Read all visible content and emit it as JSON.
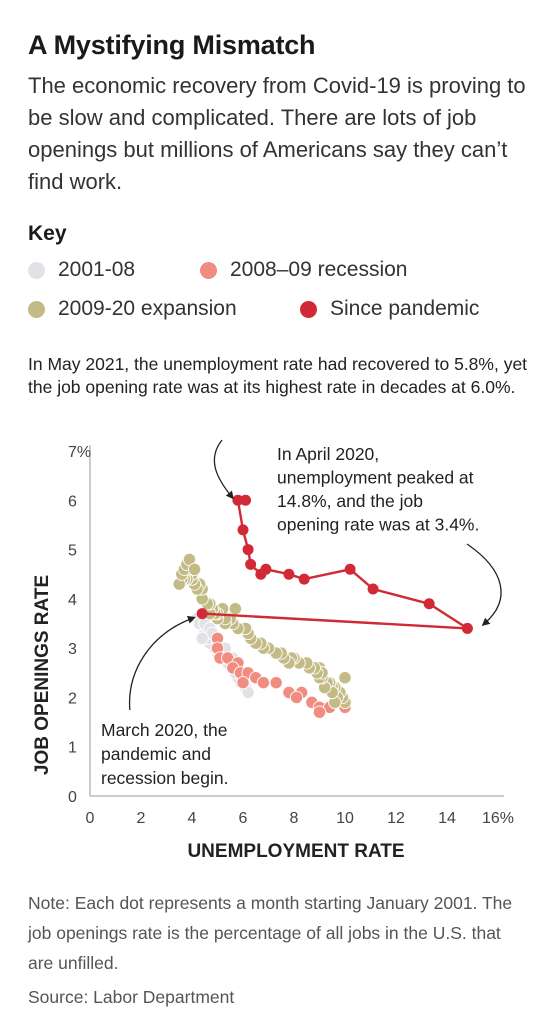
{
  "header": {
    "title": "A Mystifying Mismatch",
    "subtitle": "The economic recovery from Covid-19 is proving to be slow and complicated. There are lots of job openings but millions of Americans say they can’t find work."
  },
  "key": {
    "heading": "Key",
    "items": [
      {
        "label": "2001-08",
        "color": "#e2e2e6"
      },
      {
        "label": "2008–09 recession",
        "color": "#f08c80"
      },
      {
        "label": "2009-20 expansion",
        "color": "#c2bb85"
      },
      {
        "label": "Since pandemic",
        "color": "#d12a36"
      }
    ]
  },
  "caption": "In May 2021, the unemployment rate had recovered to 5.8%, yet the job opening rate was at its highest rate in decades at 6.0%.",
  "annotations": {
    "april_2020": [
      "In April 2020,",
      "unemployment peaked at",
      "14.8%, and the job",
      "opening rate was at 3.4%."
    ],
    "march_2020": [
      "March 2020, the",
      "pandemic and",
      "recession begin."
    ]
  },
  "note": "Note: Each dot represents a month starting January 2001. The job openings rate is the percentage of all jobs in the U.S. that are unfilled.",
  "source": "Source: Labor Department",
  "chart_data": {
    "type": "scatter",
    "xlabel": "UNEMPLOYMENT RATE",
    "ylabel": "JOB OPENINGS RATE",
    "xlim": [
      0,
      16
    ],
    "ylim": [
      0,
      7
    ],
    "x_ticks": [
      "0",
      "2",
      "4",
      "6",
      "8",
      "10",
      "12",
      "14",
      "16%"
    ],
    "y_ticks": [
      "0",
      "1",
      "2",
      "3",
      "4",
      "5",
      "6",
      "7%"
    ],
    "grid": false,
    "series": [
      {
        "name": "2001-08",
        "color": "#e2e2e6",
        "points": [
          [
            4.2,
            3.6
          ],
          [
            4.3,
            3.5
          ],
          [
            4.6,
            3.3
          ],
          [
            4.8,
            3.1
          ],
          [
            5.0,
            3.0
          ],
          [
            5.3,
            2.8
          ],
          [
            5.5,
            2.7
          ],
          [
            5.7,
            2.6
          ],
          [
            5.8,
            2.5
          ],
          [
            6.0,
            2.4
          ],
          [
            6.0,
            2.3
          ],
          [
            5.9,
            2.3
          ],
          [
            5.8,
            2.4
          ],
          [
            5.7,
            2.5
          ],
          [
            5.6,
            2.6
          ],
          [
            5.4,
            2.7
          ],
          [
            5.2,
            2.8
          ],
          [
            5.0,
            2.9
          ],
          [
            4.9,
            3.0
          ],
          [
            4.7,
            3.1
          ],
          [
            4.6,
            3.2
          ],
          [
            4.5,
            3.3
          ],
          [
            4.6,
            3.4
          ],
          [
            4.5,
            3.5
          ],
          [
            4.7,
            3.4
          ],
          [
            4.8,
            3.3
          ],
          [
            5.0,
            3.2
          ],
          [
            5.3,
            3.0
          ],
          [
            5.6,
            2.8
          ],
          [
            6.1,
            2.2
          ],
          [
            6.2,
            2.1
          ],
          [
            4.4,
            3.2
          ]
        ]
      },
      {
        "name": "2008–09 recession",
        "color": "#f08c80",
        "points": [
          [
            5.0,
            3.2
          ],
          [
            5.0,
            3.0
          ],
          [
            5.1,
            2.8
          ],
          [
            5.4,
            2.8
          ],
          [
            5.8,
            2.7
          ],
          [
            5.6,
            2.6
          ],
          [
            5.9,
            2.5
          ],
          [
            6.2,
            2.5
          ],
          [
            6.5,
            2.4
          ],
          [
            6.8,
            2.3
          ],
          [
            7.3,
            2.3
          ],
          [
            6.0,
            2.3
          ],
          [
            7.8,
            2.1
          ],
          [
            8.3,
            2.1
          ],
          [
            8.7,
            1.9
          ],
          [
            9.0,
            1.8
          ],
          [
            9.4,
            1.8
          ],
          [
            9.8,
            1.9
          ],
          [
            10.0,
            1.8
          ],
          [
            9.0,
            1.7
          ],
          [
            8.1,
            2.0
          ]
        ]
      },
      {
        "name": "2009-20 expansion",
        "color": "#c2bb85",
        "points": [
          [
            10.0,
            1.9
          ],
          [
            9.9,
            2.0
          ],
          [
            9.8,
            2.1
          ],
          [
            9.7,
            2.0
          ],
          [
            9.6,
            2.2
          ],
          [
            9.6,
            1.9
          ],
          [
            9.5,
            2.2
          ],
          [
            9.4,
            2.3
          ],
          [
            9.5,
            2.1
          ],
          [
            9.3,
            2.3
          ],
          [
            9.2,
            2.2
          ],
          [
            9.1,
            2.4
          ],
          [
            9.0,
            2.4
          ],
          [
            9.0,
            2.6
          ],
          [
            9.1,
            2.5
          ],
          [
            8.9,
            2.5
          ],
          [
            8.8,
            2.6
          ],
          [
            8.6,
            2.6
          ],
          [
            8.5,
            2.7
          ],
          [
            8.2,
            2.7
          ],
          [
            8.0,
            2.8
          ],
          [
            7.9,
            2.8
          ],
          [
            7.8,
            2.7
          ],
          [
            7.6,
            2.8
          ],
          [
            7.5,
            2.9
          ],
          [
            7.3,
            2.9
          ],
          [
            7.0,
            3.0
          ],
          [
            6.8,
            3.0
          ],
          [
            6.7,
            3.1
          ],
          [
            6.5,
            3.1
          ],
          [
            6.3,
            3.2
          ],
          [
            6.2,
            3.3
          ],
          [
            6.1,
            3.4
          ],
          [
            5.8,
            3.4
          ],
          [
            5.6,
            3.5
          ],
          [
            5.5,
            3.6
          ],
          [
            5.3,
            3.5
          ],
          [
            5.3,
            3.6
          ],
          [
            5.0,
            3.6
          ],
          [
            5.2,
            3.8
          ],
          [
            5.0,
            3.7
          ],
          [
            4.9,
            3.7
          ],
          [
            4.8,
            3.8
          ],
          [
            4.7,
            3.7
          ],
          [
            4.7,
            3.9
          ],
          [
            4.6,
            3.9
          ],
          [
            4.4,
            4.0
          ],
          [
            4.4,
            4.2
          ],
          [
            4.3,
            4.3
          ],
          [
            4.2,
            4.2
          ],
          [
            4.1,
            4.3
          ],
          [
            4.0,
            4.4
          ],
          [
            4.0,
            4.5
          ],
          [
            3.9,
            4.6
          ],
          [
            3.8,
            4.4
          ],
          [
            3.8,
            4.6
          ],
          [
            3.7,
            4.5
          ],
          [
            3.7,
            4.4
          ],
          [
            3.6,
            4.4
          ],
          [
            3.5,
            4.3
          ],
          [
            3.6,
            4.5
          ],
          [
            3.7,
            4.6
          ],
          [
            3.8,
            4.7
          ],
          [
            3.9,
            4.8
          ],
          [
            4.1,
            4.6
          ],
          [
            5.7,
            3.8
          ],
          [
            10.0,
            2.4
          ]
        ]
      },
      {
        "name": "Since pandemic",
        "color": "#d12a36",
        "connected": true,
        "points": [
          [
            4.4,
            3.7
          ],
          [
            14.8,
            3.4
          ],
          [
            13.3,
            3.9
          ],
          [
            11.1,
            4.2
          ],
          [
            10.2,
            4.6
          ],
          [
            8.4,
            4.4
          ],
          [
            7.8,
            4.5
          ],
          [
            6.9,
            4.6
          ],
          [
            6.7,
            4.5
          ],
          [
            6.3,
            4.7
          ],
          [
            6.2,
            5.0
          ],
          [
            6.0,
            5.4
          ],
          [
            5.8,
            6.0
          ],
          [
            6.1,
            6.0
          ]
        ]
      }
    ]
  }
}
